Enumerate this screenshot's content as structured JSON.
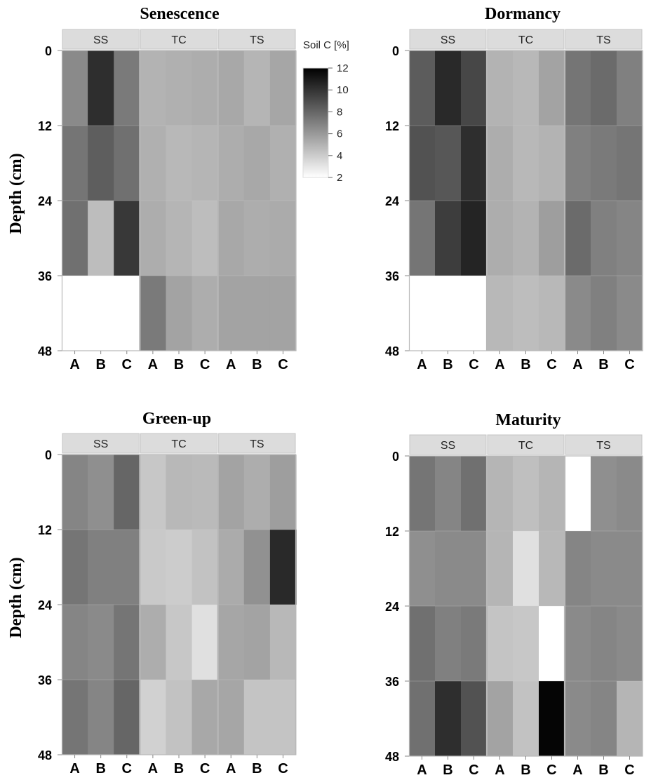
{
  "chart_data": [
    {
      "type": "heatmap",
      "title": "Senescence",
      "ylabel": "Depth (cm)",
      "panels": [
        "SS",
        "TC",
        "TS"
      ],
      "x_categories": [
        "A",
        "B",
        "C"
      ],
      "y_ticks": [
        "0",
        "12",
        "24",
        "36",
        "48"
      ],
      "values": [
        [
          [
            6.6,
            10.2,
            7.2
          ],
          [
            5.0,
            5.1,
            5.2
          ],
          [
            5.4,
            4.9,
            5.5
          ]
        ],
        [
          [
            7.4,
            8.3,
            7.6
          ],
          [
            5.1,
            4.8,
            4.9
          ],
          [
            5.2,
            5.4,
            5.1
          ]
        ],
        [
          [
            7.6,
            4.6,
            9.8
          ],
          [
            5.2,
            4.9,
            4.6
          ],
          [
            5.4,
            5.2,
            5.3
          ]
        ],
        [
          [
            null,
            null,
            null
          ],
          [
            7.2,
            5.6,
            5.2
          ],
          [
            5.6,
            5.6,
            5.6
          ]
        ]
      ]
    },
    {
      "type": "heatmap",
      "title": "Dormancy",
      "ylabel": "",
      "panels": [
        "SS",
        "TC",
        "TS"
      ],
      "x_categories": [
        "A",
        "B",
        "C"
      ],
      "y_ticks": [
        "0",
        "12",
        "24",
        "36",
        "48"
      ],
      "values": [
        [
          [
            8.4,
            10.4,
            9.2
          ],
          [
            5.0,
            4.8,
            5.6
          ],
          [
            7.4,
            7.8,
            7.0
          ]
        ],
        [
          [
            8.8,
            8.6,
            10.2
          ],
          [
            5.2,
            4.8,
            5.0
          ],
          [
            7.0,
            7.2,
            7.4
          ]
        ],
        [
          [
            7.4,
            9.6,
            10.6
          ],
          [
            5.2,
            5.0,
            5.8
          ],
          [
            7.8,
            7.0,
            6.8
          ]
        ],
        [
          [
            null,
            null,
            null
          ],
          [
            4.8,
            4.6,
            4.8
          ],
          [
            6.6,
            7.0,
            6.6
          ]
        ]
      ]
    },
    {
      "type": "heatmap",
      "title": "Green-up",
      "ylabel": "Depth (cm)",
      "panels": [
        "SS",
        "TC",
        "TS"
      ],
      "x_categories": [
        "A",
        "B",
        "C"
      ],
      "y_ticks": [
        "0",
        "12",
        "24",
        "36",
        "48"
      ],
      "values": [
        [
          [
            6.8,
            6.4,
            8.0
          ],
          [
            4.2,
            4.8,
            4.7
          ],
          [
            5.6,
            5.2,
            5.8
          ]
        ],
        [
          [
            7.4,
            7.0,
            7.0
          ],
          [
            4.1,
            4.0,
            4.4
          ],
          [
            5.3,
            6.3,
            10.4
          ]
        ],
        [
          [
            6.8,
            6.6,
            7.4
          ],
          [
            5.2,
            4.2,
            3.2
          ],
          [
            5.5,
            5.6,
            4.8
          ]
        ],
        [
          [
            7.4,
            6.8,
            8.0
          ],
          [
            3.8,
            4.4,
            5.4
          ],
          [
            5.5,
            4.3,
            4.3
          ]
        ]
      ]
    },
    {
      "type": "heatmap",
      "title": "Maturity",
      "ylabel": "",
      "panels": [
        "SS",
        "TC",
        "TS"
      ],
      "x_categories": [
        "A",
        "B",
        "C"
      ],
      "y_ticks": [
        "0",
        "12",
        "24",
        "36",
        "48"
      ],
      "values": [
        [
          [
            7.4,
            6.8,
            7.6
          ],
          [
            4.9,
            4.5,
            4.9
          ],
          [
            null,
            6.4,
            6.6
          ]
        ],
        [
          [
            6.4,
            6.6,
            6.6
          ],
          [
            4.9,
            3.2,
            4.8
          ],
          [
            6.8,
            6.6,
            6.6
          ]
        ],
        [
          [
            7.6,
            7.0,
            7.2
          ],
          [
            4.3,
            4.2,
            null
          ],
          [
            6.6,
            6.8,
            6.6
          ]
        ],
        [
          [
            7.6,
            10.2,
            8.8
          ],
          [
            5.6,
            4.4,
            11.8
          ],
          [
            6.6,
            6.8,
            4.9
          ]
        ]
      ]
    }
  ],
  "legend": {
    "title": "Soil C [%]",
    "ticks": [
      "12",
      "10",
      "8",
      "6",
      "4",
      "2"
    ],
    "range": [
      2,
      12
    ]
  }
}
